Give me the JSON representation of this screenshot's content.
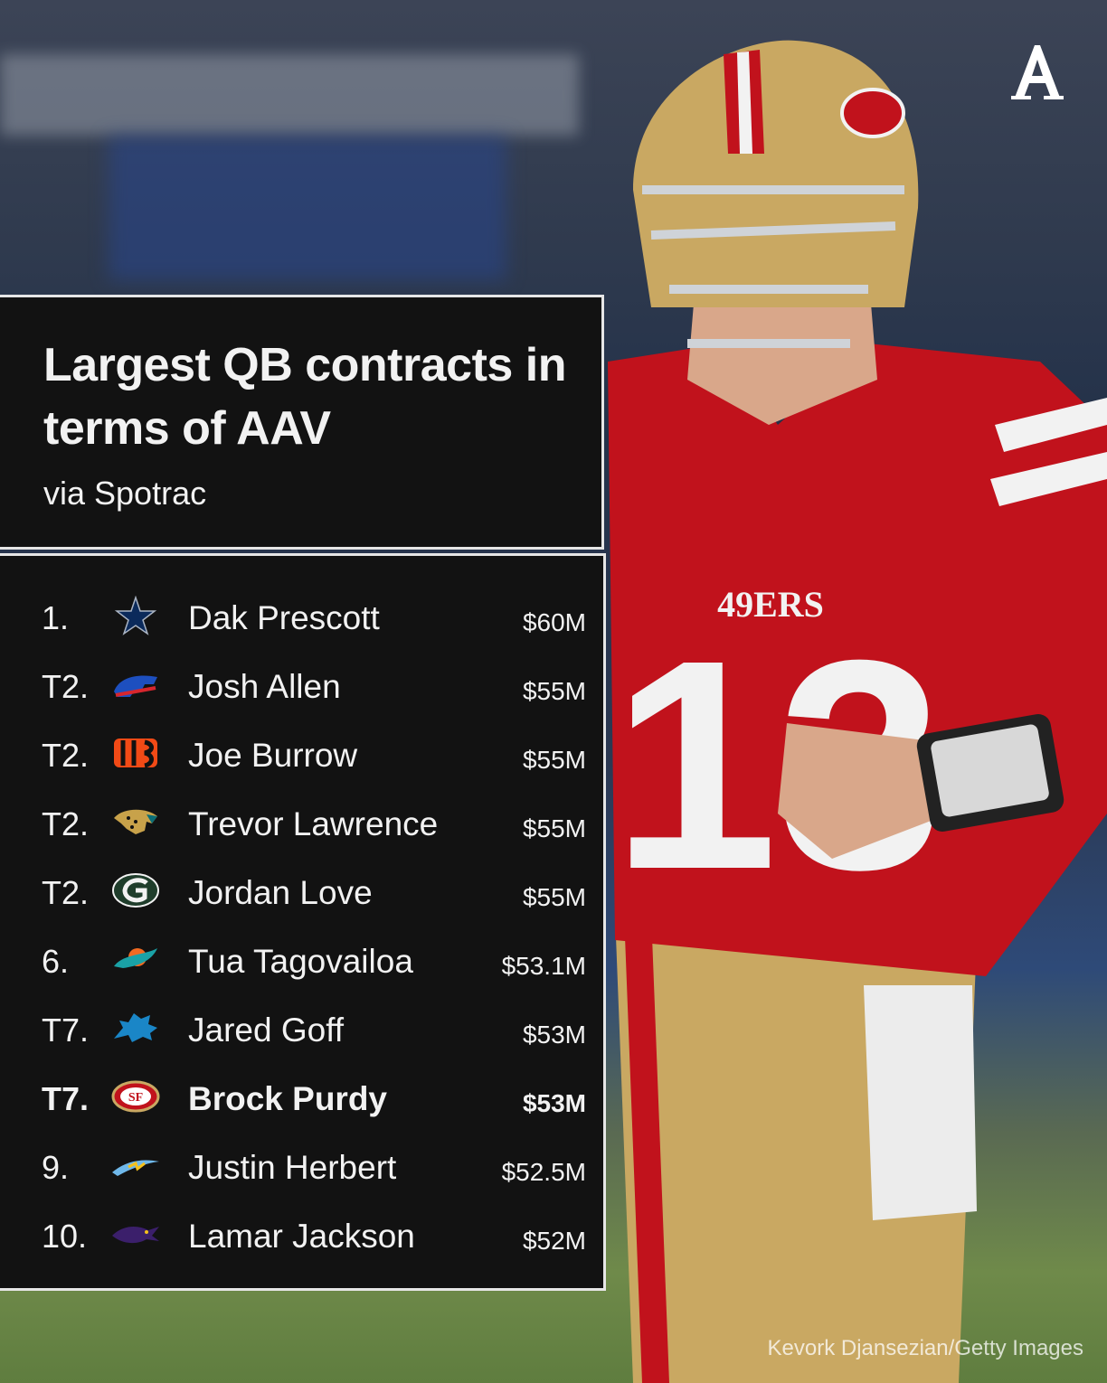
{
  "header": {
    "title": "Largest QB contracts in terms of AAV",
    "subtitle": "via Spotrac"
  },
  "brand": {
    "icon": "the-athletic-logo",
    "letter": "A"
  },
  "rows": [
    {
      "rank": "1.",
      "team_icon": "cowboys-star-icon",
      "name": "Dak Prescott",
      "amount": "$60M",
      "highlight": false
    },
    {
      "rank": "T2.",
      "team_icon": "bills-icon",
      "name": "Josh Allen",
      "amount": "$55M",
      "highlight": false
    },
    {
      "rank": "T2.",
      "team_icon": "bengals-icon",
      "name": "Joe Burrow",
      "amount": "$55M",
      "highlight": false
    },
    {
      "rank": "T2.",
      "team_icon": "jaguars-icon",
      "name": "Trevor Lawrence",
      "amount": "$55M",
      "highlight": false
    },
    {
      "rank": "T2.",
      "team_icon": "packers-icon",
      "name": "Jordan Love",
      "amount": "$55M",
      "highlight": false
    },
    {
      "rank": "6.",
      "team_icon": "dolphins-icon",
      "name": "Tua Tagovailoa",
      "amount": "$53.1M",
      "highlight": false
    },
    {
      "rank": "T7.",
      "team_icon": "lions-icon",
      "name": "Jared Goff",
      "amount": "$53M",
      "highlight": false
    },
    {
      "rank": "T7.",
      "team_icon": "49ers-icon",
      "name": "Brock Purdy",
      "amount": "$53M",
      "highlight": true
    },
    {
      "rank": "9.",
      "team_icon": "chargers-icon",
      "name": "Justin Herbert",
      "amount": "$52.5M",
      "highlight": false
    },
    {
      "rank": "10.",
      "team_icon": "ravens-icon",
      "name": "Lamar Jackson",
      "amount": "$52M",
      "highlight": false
    }
  ],
  "photo": {
    "jersey_text": "49ERS",
    "jersey_number": "13",
    "credit": "Kevork Djansezian/Getty Images"
  },
  "colors": {
    "panel": "#121212",
    "text": "#f2f2f2",
    "border": "#e6e6e6",
    "niners_red": "#c1121c",
    "niners_gold": "#c9a862"
  }
}
